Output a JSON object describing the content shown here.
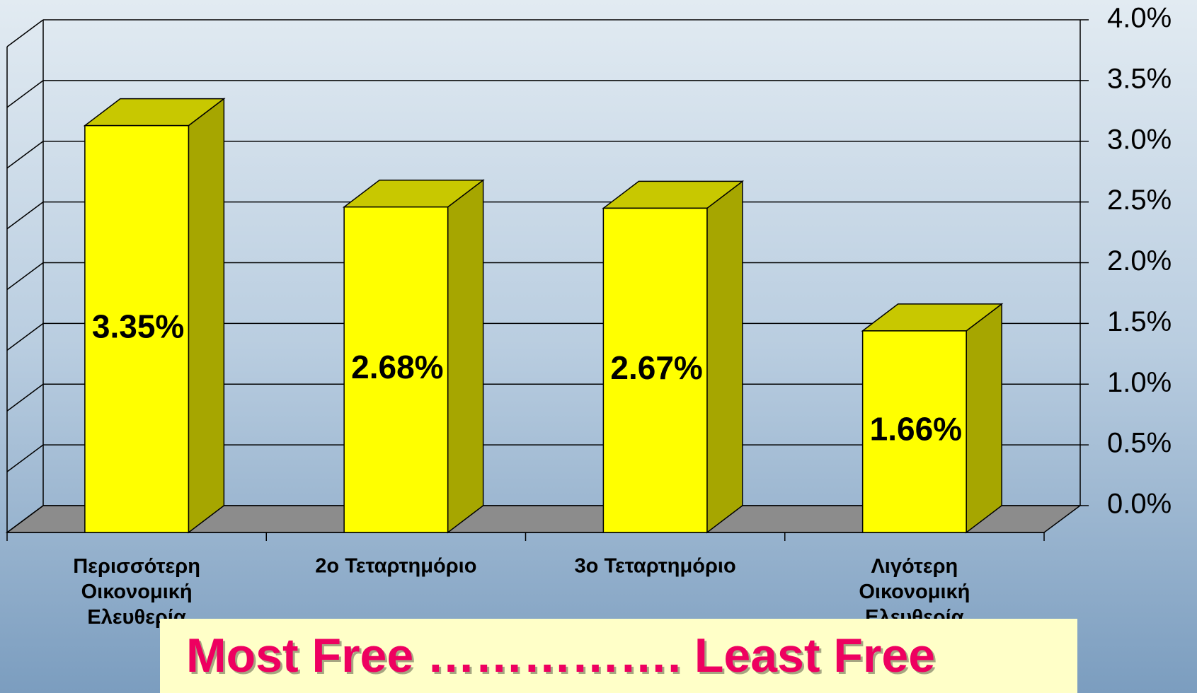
{
  "chart_data": {
    "type": "bar3d",
    "categories": [
      "Περισσότερη Οικονομική Ελευθερία",
      "2ο Τεταρτημόριο",
      "3ο Τεταρτημόριο",
      "Λιγότερη Οικονομική Ελευθερία"
    ],
    "values": [
      3.35,
      2.68,
      2.67,
      1.66
    ],
    "value_labels": [
      "3.35%",
      "2.68%",
      "2.67%",
      "1.66%"
    ],
    "color": "#ffff00",
    "ylim": [
      0,
      4
    ],
    "yticks": [
      {
        "value": 0,
        "label": "0.0%"
      },
      {
        "value": 0.5,
        "label": "0.5%"
      },
      {
        "value": 1,
        "label": "1.0%"
      },
      {
        "value": 1.5,
        "label": "1.5%"
      },
      {
        "value": 2,
        "label": "2.0%"
      },
      {
        "value": 2.5,
        "label": "2.5%"
      },
      {
        "value": 3,
        "label": "3.0%"
      },
      {
        "value": 3.5,
        "label": "3.5%"
      },
      {
        "value": 4,
        "label": "4.0%"
      }
    ],
    "grid": true,
    "annotation": "Most Free ……………. Least Free"
  }
}
